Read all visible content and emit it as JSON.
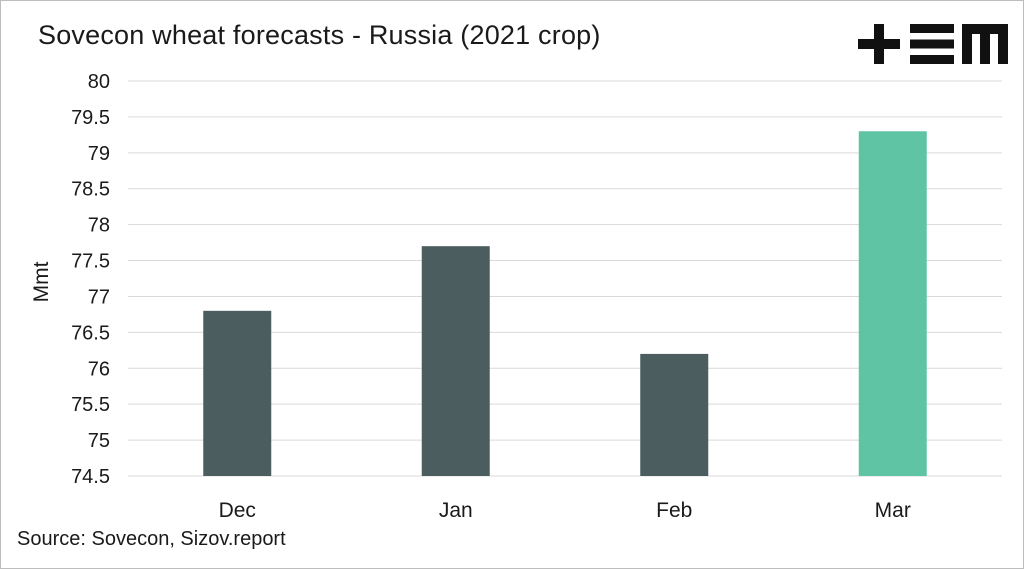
{
  "logo_text": "+EM",
  "source": "Source: Sovecon, Sizov.report",
  "chart_data": {
    "type": "bar",
    "title": "Sovecon wheat forecasts - Russia (2021 crop)",
    "xlabel": "",
    "ylabel": "Mmt",
    "categories": [
      "Dec",
      "Jan",
      "Feb",
      "Mar"
    ],
    "values": [
      76.8,
      77.7,
      76.2,
      79.3
    ],
    "ylim": [
      74.5,
      80
    ],
    "yticks": [
      "74.5",
      "75",
      "75.5",
      "76",
      "76.5",
      "77",
      "77.5",
      "78",
      "78.5",
      "79",
      "79.5",
      "80"
    ],
    "grid": true,
    "legend": "none",
    "colors": {
      "default_bar": "#4b5d5f",
      "highlight_bar": "#5fc4a3",
      "grid": "#d9d9d9"
    },
    "highlight_index": 3
  }
}
